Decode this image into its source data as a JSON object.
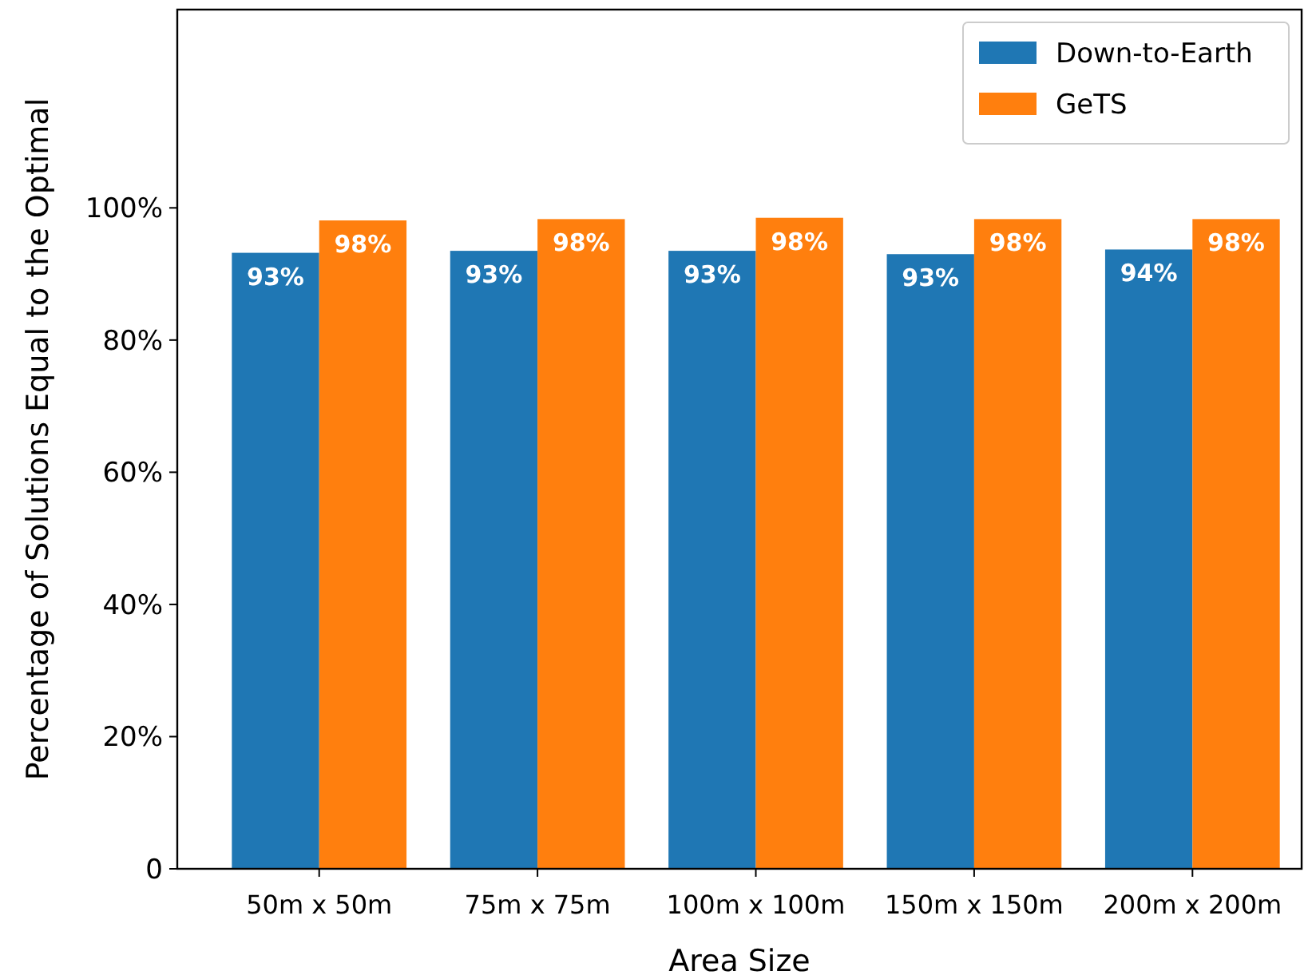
{
  "chart_data": {
    "type": "bar",
    "xlabel": "Area Size",
    "ylabel": "Percentage of Solutions Equal to the Optimal",
    "categories": [
      "50m x 50m",
      "75m x 75m",
      "100m x 100m",
      "150m x 150m",
      "200m x 200m"
    ],
    "series": [
      {
        "name": "Down-to-Earth",
        "color": "#1f77b4",
        "values": [
          93.2,
          93.5,
          93.5,
          93.0,
          93.7
        ],
        "value_labels": [
          "93%",
          "93%",
          "93%",
          "93%",
          "94%"
        ]
      },
      {
        "name": "GeTS",
        "color": "#ff7f0e",
        "values": [
          98.1,
          98.3,
          98.5,
          98.3,
          98.3
        ],
        "value_labels": [
          "98%",
          "98%",
          "98%",
          "98%",
          "98%"
        ]
      }
    ],
    "ylim": [
      0,
      130
    ],
    "yticks": [
      {
        "value": 0,
        "label": "0"
      },
      {
        "value": 20,
        "label": "20%"
      },
      {
        "value": 40,
        "label": "40%"
      },
      {
        "value": 60,
        "label": "60%"
      },
      {
        "value": 80,
        "label": "80%"
      },
      {
        "value": 100,
        "label": "100%"
      }
    ],
    "legend": "top right",
    "grid": false
  }
}
